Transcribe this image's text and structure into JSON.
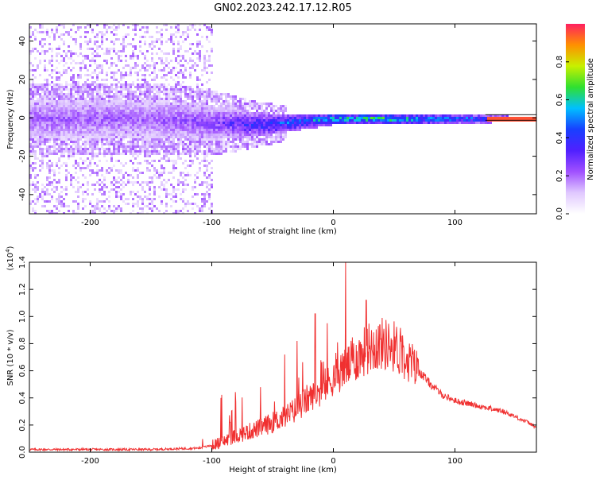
{
  "title": "GN02.2023.242.17.12.R05",
  "colors": {
    "snr_line": "#f03030",
    "axis": "#000000",
    "ridge_band": "#30e030",
    "peak": "#ff2060"
  },
  "chart_data": [
    {
      "type": "heatmap",
      "xlabel": "Height of straight line (km)",
      "ylabel": "Frequency (Hz)",
      "xlim": [
        -250,
        167
      ],
      "ylim": [
        -50,
        49
      ],
      "x_ticks": [
        -200,
        -100,
        0,
        100
      ],
      "x_tick_labels": [
        "-200",
        "-100",
        "0",
        "100"
      ],
      "y_ticks": [
        -40,
        -20,
        0,
        20,
        40
      ],
      "y_tick_labels": [
        "-40",
        "-20",
        "0",
        "20",
        "40"
      ],
      "colorbar": {
        "label": "Normalized spectral amplitude",
        "range": [
          0.0,
          1.0
        ],
        "ticks": [
          0.0,
          0.2,
          0.4,
          0.6,
          0.8
        ],
        "tick_labels": [
          "0.0",
          "0.2",
          "0.4",
          "0.6",
          "0.8"
        ],
        "colormap": [
          "#ffffff",
          "#e0c8ff",
          "#a050ff",
          "#5020ff",
          "#1840ff",
          "#00c0ff",
          "#30e030",
          "#c8f000",
          "#ff9000",
          "#ff2060"
        ]
      },
      "noise_region": {
        "x_start": -250,
        "x_end": -100,
        "freq_min": -50,
        "freq_max": 49
      },
      "ridge": {
        "x": [
          -250,
          -150,
          -100,
          -60,
          -40,
          -20,
          0,
          40,
          80,
          125,
          167
        ],
        "center_freq": [
          0,
          0,
          -2,
          -3,
          -2,
          -1,
          0,
          0,
          0,
          0,
          0
        ],
        "half_width": [
          10,
          10,
          9,
          6,
          5,
          4,
          3,
          2.5,
          2.5,
          2,
          1.5
        ],
        "amplitude": [
          0.25,
          0.25,
          0.3,
          0.45,
          0.5,
          0.55,
          0.65,
          0.75,
          0.6,
          0.55,
          0.95
        ]
      }
    },
    {
      "type": "line",
      "xlabel": "Height of straight line (km)",
      "ylabel": "SNR (10 * v/v)",
      "y_scale_label": "(x10",
      "y_scale_exp": "4",
      "y_scale_close": ")",
      "xlim": [
        -250,
        167
      ],
      "ylim": [
        0,
        1.4
      ],
      "x_ticks": [
        -200,
        -100,
        0,
        100
      ],
      "x_tick_labels": [
        "-200",
        "-100",
        "0",
        "100"
      ],
      "y_ticks": [
        0,
        0.2,
        0.4,
        0.6,
        0.8,
        1.0,
        1.2,
        1.4
      ],
      "y_tick_labels": [
        "0.0",
        "0.2",
        "0.4",
        "0.6",
        "0.8",
        "1.0",
        "1.2",
        "1.4"
      ],
      "series": [
        {
          "x": [
            -250,
            -200,
            -150,
            -110,
            -100,
            -90,
            -80,
            -70,
            -60,
            -50,
            -40,
            -30,
            -20,
            -10,
            0,
            10,
            20,
            30,
            40,
            50,
            60,
            70,
            80,
            90,
            100,
            120,
            140,
            160,
            167
          ],
          "y": [
            0.02,
            0.02,
            0.02,
            0.03,
            0.05,
            0.08,
            0.12,
            0.15,
            0.18,
            0.22,
            0.26,
            0.32,
            0.4,
            0.45,
            0.55,
            0.62,
            0.7,
            0.78,
            0.8,
            0.78,
            0.7,
            0.6,
            0.5,
            0.42,
            0.38,
            0.34,
            0.3,
            0.22,
            0.18
          ],
          "spikes": [
            {
              "x": 10,
              "y": 1.4
            },
            {
              "x": 27,
              "y": 1.12
            },
            {
              "x": -15,
              "y": 1.02
            },
            {
              "x": -5,
              "y": 0.95
            },
            {
              "x": -30,
              "y": 0.82
            },
            {
              "x": -40,
              "y": 0.72
            },
            {
              "x": -60,
              "y": 0.48
            },
            {
              "x": -85,
              "y": 0.22
            }
          ]
        }
      ]
    }
  ]
}
